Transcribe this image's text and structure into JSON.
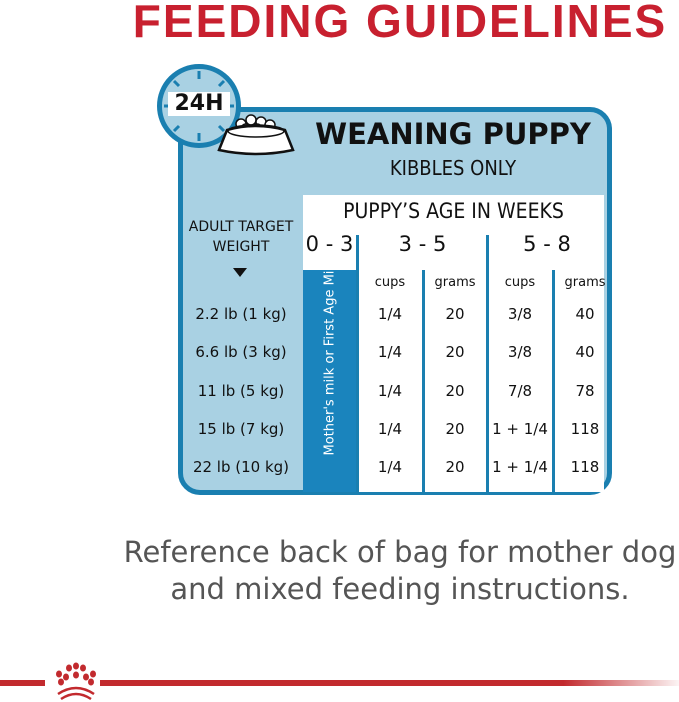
{
  "title": "FEEDING GUIDELINES",
  "card": {
    "clock_label": "24H",
    "heading": "WEANING PUPPY",
    "subheading": "KIBBLES ONLY",
    "age_title": "PUPPY’S AGE IN WEEKS",
    "weight_header": "ADULT TARGET WEIGHT",
    "ages": [
      "0 - 3",
      "3 - 5",
      "5 - 8"
    ],
    "units": [
      "cups",
      "grams",
      "cups",
      "grams"
    ],
    "milk_note": "Mother's milk or First Age Milk",
    "rows": [
      {
        "weight": "2.2 lb (1 kg)",
        "cells": [
          "1/4",
          "20",
          "3/8",
          "40"
        ]
      },
      {
        "weight": "6.6 lb (3 kg)",
        "cells": [
          "1/4",
          "20",
          "3/8",
          "40"
        ]
      },
      {
        "weight": "11 lb (5 kg)",
        "cells": [
          "1/4",
          "20",
          "7/8",
          "78"
        ]
      },
      {
        "weight": "15 lb (7 kg)",
        "cells": [
          "1/4",
          "20",
          "1 + 1/4",
          "118"
        ]
      },
      {
        "weight": "22 lb (10 kg)",
        "cells": [
          "1/4",
          "20",
          "1 + 1/4",
          "118"
        ]
      }
    ]
  },
  "note": "Reference back of bag for mother dog and mixed feeding instructions.",
  "colors": {
    "brand_red": "#c8202f",
    "table_blue": "#1a7fb0",
    "light_blue": "#a9d1e3"
  },
  "icons": [
    "clock-icon",
    "food-bowl-icon",
    "crown-logo-icon"
  ]
}
